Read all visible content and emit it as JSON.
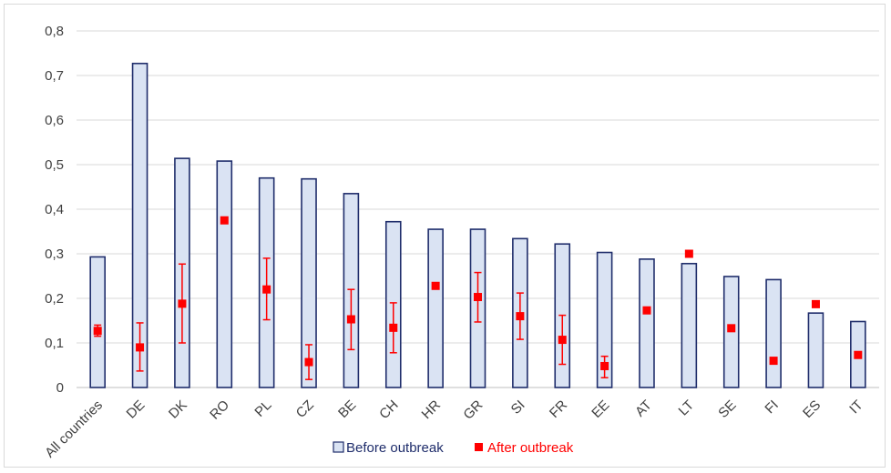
{
  "chart_data": {
    "type": "bar",
    "title": "",
    "xlabel": "",
    "ylabel": "",
    "ylim": [
      0,
      0.8
    ],
    "yticks": [
      "0",
      "0,1",
      "0,2",
      "0,3",
      "0,4",
      "0,5",
      "0,6",
      "0,7",
      "0,8"
    ],
    "grid": true,
    "legend_position": "bottom",
    "categories": [
      "All countries",
      "DE",
      "DK",
      "RO",
      "PL",
      "CZ",
      "BE",
      "CH",
      "HR",
      "GR",
      "SI",
      "FR",
      "EE",
      "AT",
      "LT",
      "SE",
      "FI",
      "ES",
      "IT"
    ],
    "series": [
      {
        "name": "Before outbreak",
        "mark": "bar",
        "color": "#dae3f3",
        "edge_color": "#1f2d6b",
        "values": [
          0.293,
          0.727,
          0.514,
          0.508,
          0.47,
          0.468,
          0.435,
          0.372,
          0.355,
          0.355,
          0.334,
          0.322,
          0.303,
          0.288,
          0.278,
          0.249,
          0.242,
          0.167,
          0.148
        ]
      },
      {
        "name": "After outbreak",
        "mark": "point",
        "color": "#ff0000",
        "values": [
          0.127,
          0.09,
          0.188,
          0.375,
          0.22,
          0.057,
          0.153,
          0.134,
          0.228,
          0.203,
          0.16,
          0.107,
          0.048,
          0.173,
          0.3,
          0.133,
          0.06,
          0.187,
          0.073
        ],
        "error_low": [
          0.115,
          0.037,
          0.1,
          null,
          0.152,
          0.018,
          0.085,
          0.078,
          null,
          0.147,
          0.108,
          0.052,
          0.022,
          null,
          null,
          null,
          null,
          null,
          null
        ],
        "error_high": [
          0.14,
          0.145,
          0.277,
          null,
          0.29,
          0.096,
          0.22,
          0.19,
          null,
          0.258,
          0.212,
          0.162,
          0.07,
          null,
          null,
          null,
          null,
          null,
          null
        ]
      }
    ]
  }
}
